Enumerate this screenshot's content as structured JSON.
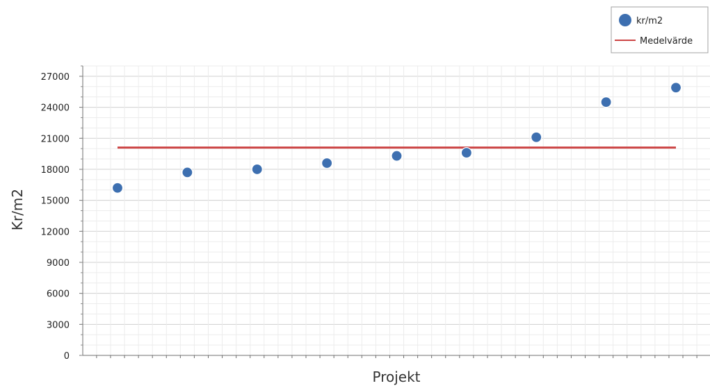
{
  "chart_data": {
    "type": "scatter",
    "xlabel": "Projekt",
    "ylabel": "Kr/m2",
    "ylim": [
      0,
      28000
    ],
    "yticks": [
      0,
      3000,
      6000,
      9000,
      12000,
      15000,
      18000,
      21000,
      24000,
      27000
    ],
    "x": [
      1,
      2,
      3,
      4,
      5,
      6,
      7,
      8,
      9
    ],
    "series": [
      {
        "name": "kr/m2",
        "kind": "scatter",
        "color": "#3d6fb0",
        "values": [
          16200,
          17700,
          18000,
          18600,
          19300,
          19600,
          21100,
          24500,
          25900
        ]
      },
      {
        "name": "Medelvärde",
        "kind": "line",
        "color": "#cc4444",
        "values": [
          20100,
          20100,
          20100,
          20100,
          20100,
          20100,
          20100,
          20100,
          20100
        ]
      }
    ],
    "grid": true,
    "legend": "top-right"
  }
}
